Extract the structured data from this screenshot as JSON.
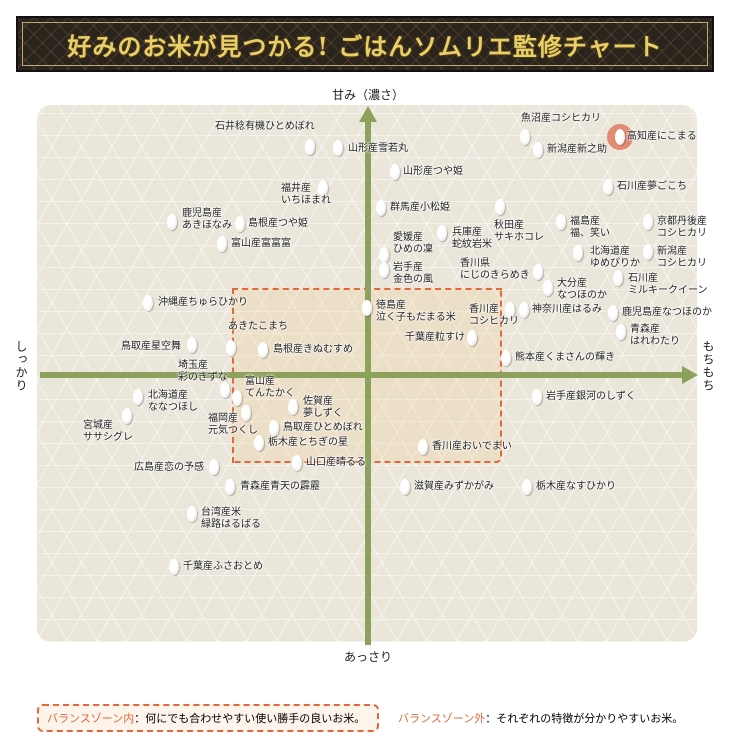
{
  "title": "好みのお米が見つかる! ごはんソムリエ監修チャート",
  "axes": {
    "top": "甘み（濃さ）",
    "bottom": "あっさり",
    "left": "しっかり",
    "right": "もちもち"
  },
  "highlight_color": "#e07a62",
  "zone_color": "#e0683a",
  "highlighted_item": "高知産にこまる",
  "items": [
    [
      "石井稔有機ひとめぼれ"
    ],
    [
      "山形産雪若丸"
    ],
    [
      "山形産つや姫"
    ],
    [
      "福井産",
      "いちほまれ"
    ],
    [
      "鹿児島産",
      "あきほなみ"
    ],
    [
      "島根産つや姫"
    ],
    [
      "富山産富富富"
    ],
    [
      "群馬産小松姫"
    ],
    [
      "愛媛産",
      "ひめの凜"
    ],
    [
      "岩手産",
      "金色の風"
    ],
    [
      "兵庫産",
      "蛇紋岩米"
    ],
    [
      "秋田産",
      "サキホコレ"
    ],
    [
      "香川県",
      "にじのきらめき"
    ],
    [
      "福島産",
      "福、笑い"
    ],
    [
      "北海道産",
      "ゆめぴりか"
    ],
    [
      "京都丹後産",
      "コシヒカリ"
    ],
    [
      "新潟産",
      "コシヒカリ"
    ],
    [
      "石川産",
      "ミルキークイーン"
    ],
    [
      "大分産",
      "なつほのか"
    ],
    [
      "魚沼産コシヒカリ"
    ],
    [
      "新潟産新之助"
    ],
    [
      "高知産にこまる"
    ],
    [
      "石川産夢ごこち"
    ],
    [
      "徳島産",
      "泣く子もだまる米"
    ],
    [
      "香川産",
      "コシヒカリ"
    ],
    [
      "神奈川産はるみ"
    ],
    [
      "鹿児島産なつほのか"
    ],
    [
      "青森産",
      "はれわたり"
    ],
    [
      "千葉産粒すけ"
    ],
    [
      "熊本産くまさんの輝き"
    ],
    [
      "岩手産銀河のしずく"
    ],
    [
      "香川産おいでまい"
    ],
    [
      "滋賀産みずかがみ"
    ],
    [
      "栃木産なすひかり"
    ],
    [
      "沖縄産ちゅらひかり"
    ],
    [
      "あきたこまち"
    ],
    [
      "島根産きぬむすめ"
    ],
    [
      "鳥取産星空舞"
    ],
    [
      "埼玉産",
      "彩のきずな"
    ],
    [
      "北海道産",
      "ななつほし"
    ],
    [
      "宮城産",
      "ササシグレ"
    ],
    [
      "富山産",
      "てんたかく"
    ],
    [
      "福岡産",
      "元気つくし"
    ],
    [
      "佐賀産",
      "夢しずく"
    ],
    [
      "鳥取産ひとめぼれ"
    ],
    [
      "栃木産とちぎの星"
    ],
    [
      "山口産晴るる"
    ],
    [
      "広島産恋の予感"
    ],
    [
      "青森産青天の霹靂"
    ],
    [
      "台湾産米",
      "緑路はるばる"
    ],
    [
      "千葉産ふさおとめ"
    ]
  ],
  "legend": {
    "inside_key": "バランスゾーン内",
    "inside_text": "：何にでも合わせやすい使い勝手の良いお米。",
    "outside_key": "バランスゾーン外",
    "outside_text": "：それぞれの特徴が分かりやすいお米。"
  }
}
